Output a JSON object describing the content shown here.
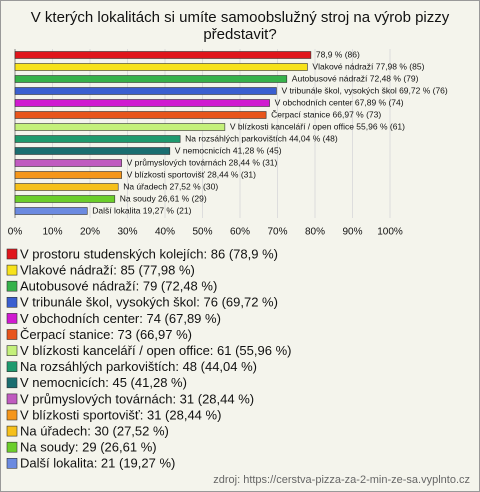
{
  "chart_data": {
    "type": "bar",
    "orientation": "horizontal",
    "title": [
      "V kterých lokalitách si umíte samoobslužný stroj na výrob pizzy",
      "představit?"
    ],
    "categories": [
      "V prostoru studenských kolejích",
      "Vlakové nádraží",
      "Autobusové nádraží",
      "V tribunále škol, vysokých škol",
      "V obchodních center",
      "Čerpací stanice",
      "V blízkosti kanceláří / open office",
      "Na rozsáhlých parkovištích",
      "V nemocnicích",
      "V průmyslových továrnách",
      "V blízkosti sportovišť",
      "Na úřadech",
      "Na soudy",
      "Další lokalita"
    ],
    "values": [
      78.9,
      77.98,
      72.48,
      69.72,
      67.89,
      66.97,
      55.96,
      44.04,
      41.28,
      28.44,
      28.44,
      27.52,
      26.61,
      19.27
    ],
    "value_labels": [
      "78,9 % (86)",
      "Vlakové nádraží 77,98 % (85)",
      "Autobusové nádraží 72,48 % (79)",
      "V tribunále škol, vysokých škol 69,72 % (76)",
      "V obchodních center 67,89 % (74)",
      "Čerpací stanice 66,97 % (73)",
      "V blízkosti kanceláří / open office 55,96 % (61)",
      "Na rozsáhlých parkovištích 44,04 % (48)",
      "V nemocnicích 41,28 % (45)",
      "V průmyslových továrnách 28,44 % (31)",
      "V blízkosti sportovišť 28,44 % (31)",
      "Na úřadech 27,52 % (30)",
      "Na soudy 26,61 % (29)",
      "Další lokalita 19,27 % (21)"
    ],
    "legend": [
      "V prostoru studenských kolejích: 86 (78,9 %)",
      "Vlakové nádraží: 85 (77,98 %)",
      "Autobusové nádraží: 79 (72,48 %)",
      "V tribunále škol, vysokých škol: 76 (69,72 %)",
      "V obchodních center: 74 (67,89 %)",
      "Čerpací stanice: 73 (66,97 %)",
      "V blízkosti kanceláří / open office: 61 (55,96 %)",
      "Na rozsáhlých parkovištích: 48 (44,04 %)",
      "V nemocnicích: 45 (41,28 %)",
      "V průmyslových továrnách: 31 (28,44 %)",
      "V blízkosti sportovišť: 31 (28,44 %)",
      "Na úřadech: 30 (27,52 %)",
      "Na soudy: 29 (26,61 %)",
      "Další lokalita: 21 (19,27 %)"
    ],
    "colors": [
      "#e0161c",
      "#f7e21a",
      "#36b24a",
      "#3a5fd0",
      "#d01ad0",
      "#e8551b",
      "#c4f07a",
      "#1e9a6e",
      "#1a6e70",
      "#c05bc0",
      "#f5961a",
      "#f6c01a",
      "#6bce2a",
      "#6b8ae0"
    ],
    "xlim": [
      0,
      100
    ],
    "xticks": [
      {
        "value": 0,
        "label": "0%"
      },
      {
        "value": 10,
        "label": "10%"
      },
      {
        "value": 20,
        "label": "20%"
      },
      {
        "value": 30,
        "label": "30%"
      },
      {
        "value": 40,
        "label": "40%"
      },
      {
        "value": 50,
        "label": "50%"
      },
      {
        "value": 60,
        "label": "60%"
      },
      {
        "value": 70,
        "label": "70%"
      },
      {
        "value": 80,
        "label": "80%"
      },
      {
        "value": 90,
        "label": "90%"
      },
      {
        "value": 100,
        "label": "100%"
      }
    ],
    "grid": true,
    "source": "zdroj: https://cerstva-pizza-za-2-min-ze-sa.vyplnto.cz"
  }
}
